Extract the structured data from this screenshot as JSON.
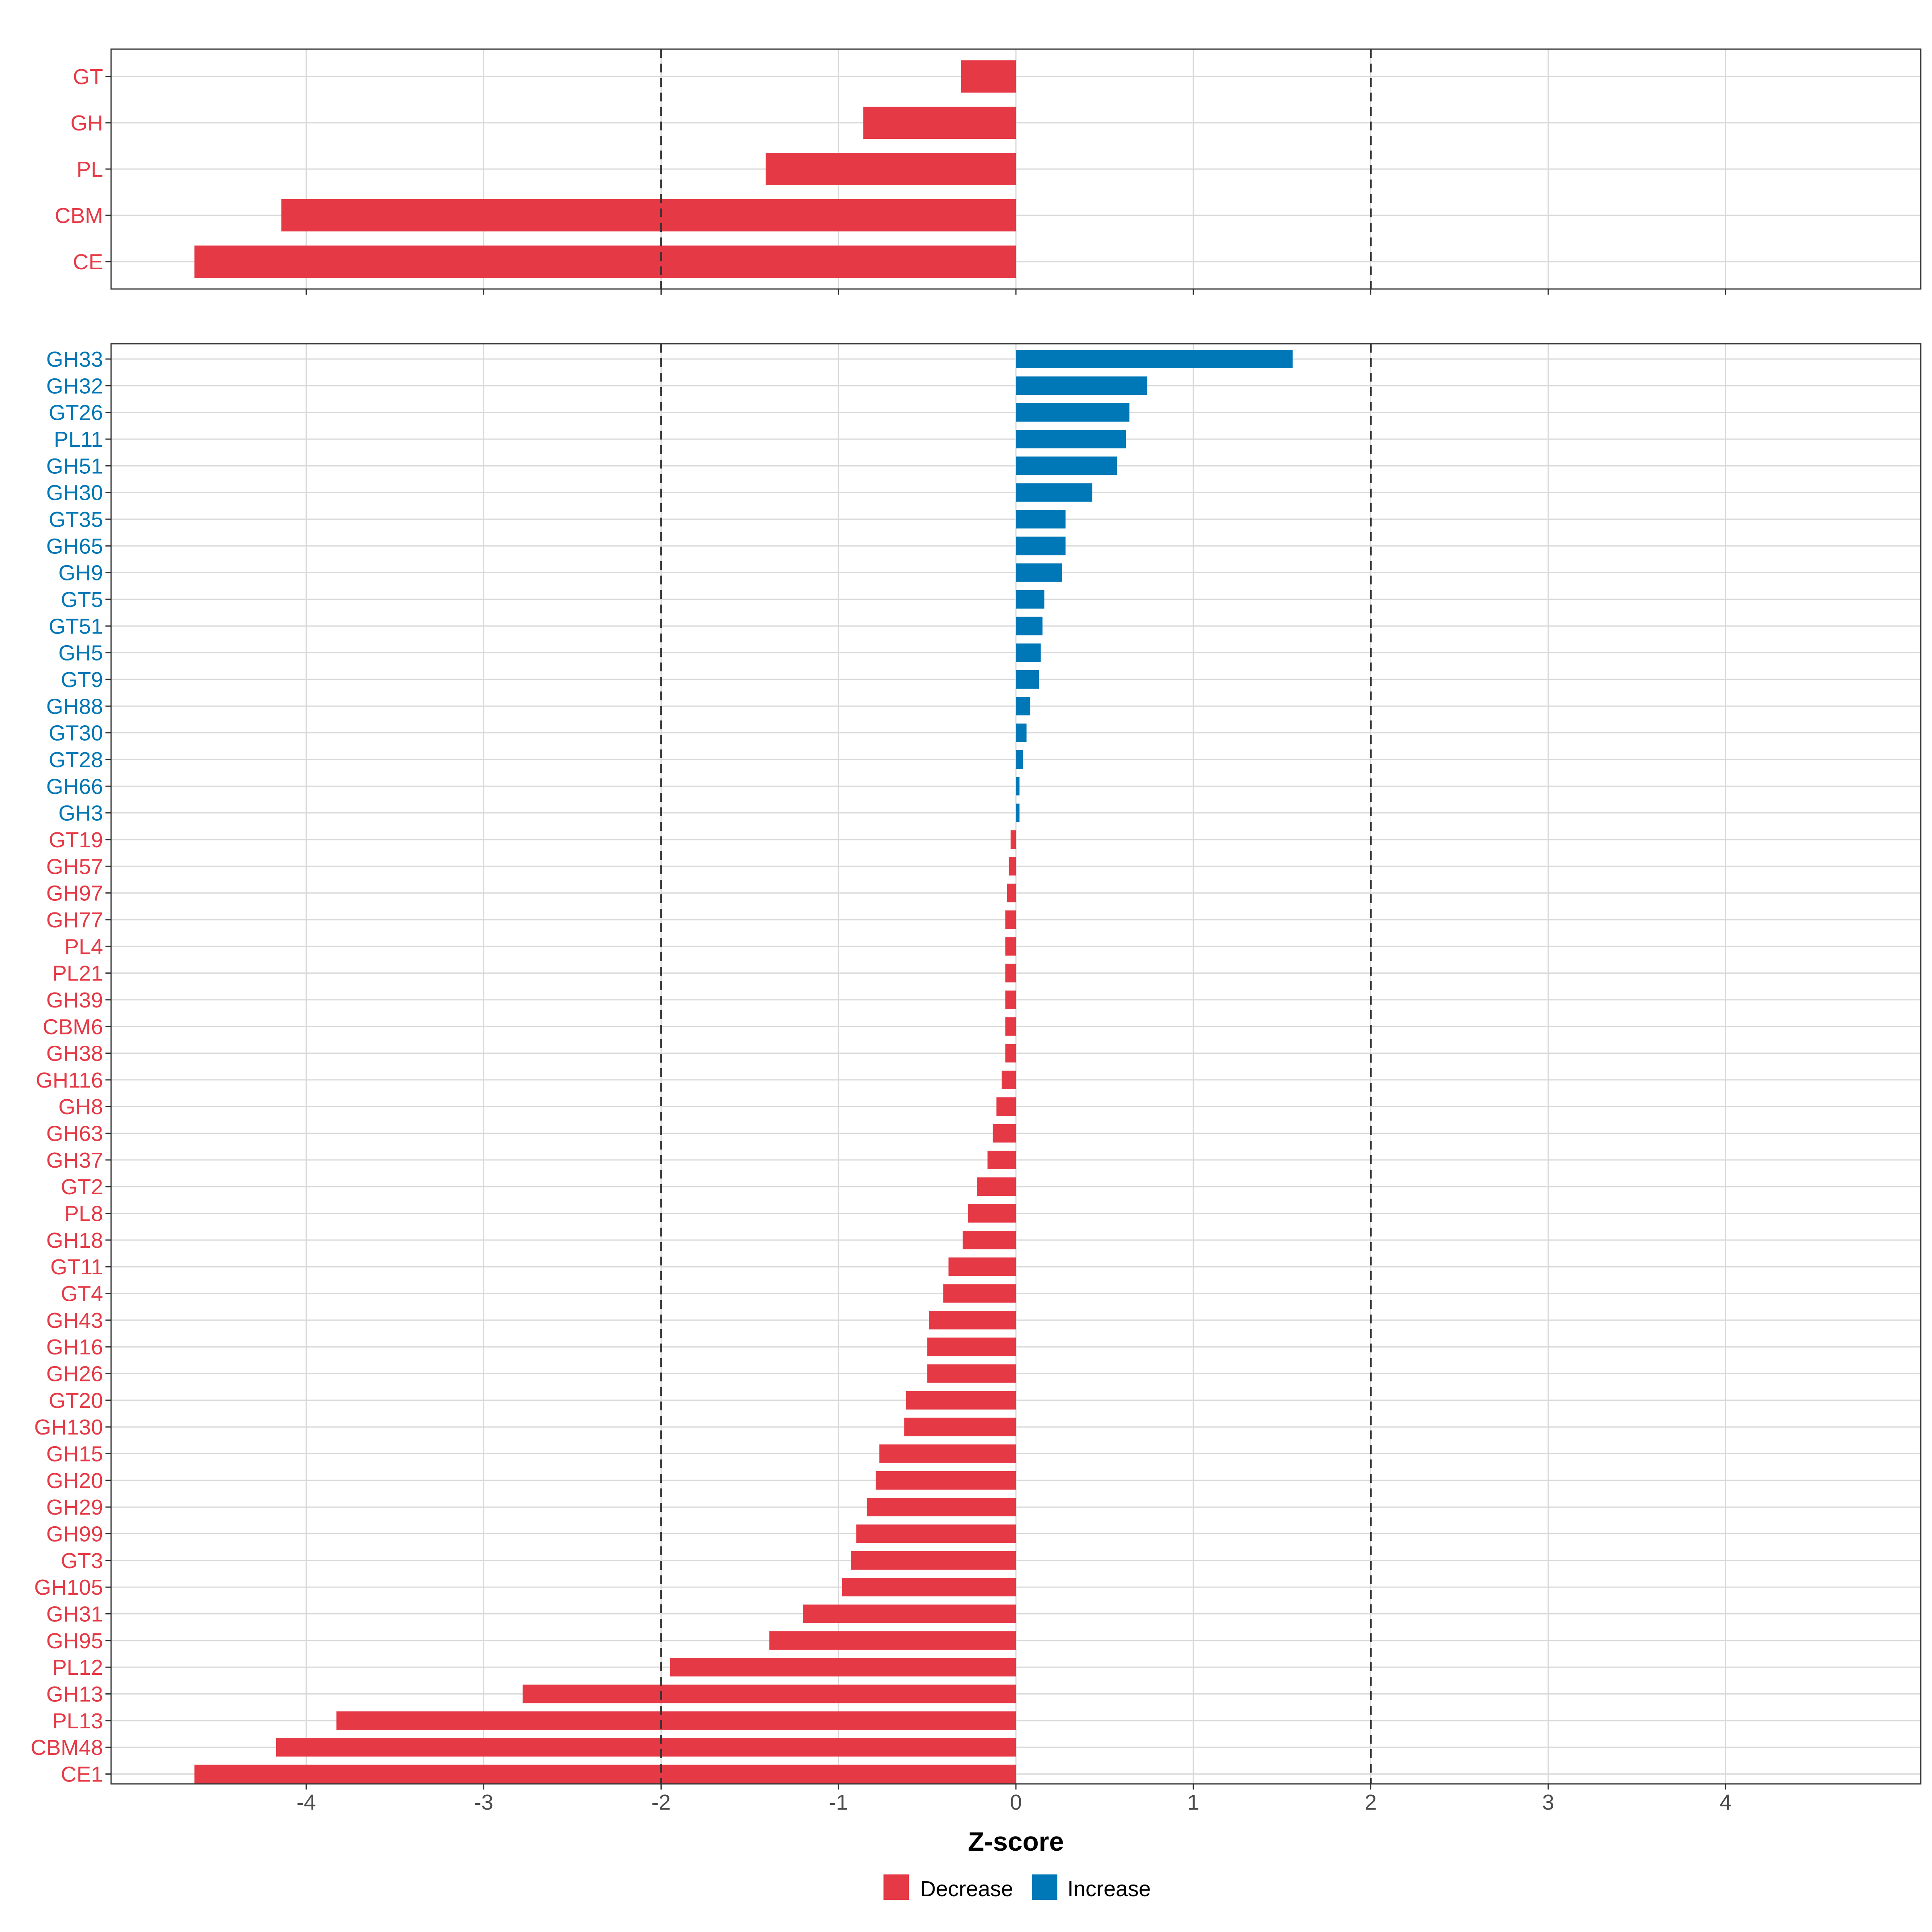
{
  "chart_data": {
    "type": "bar",
    "orientation": "horizontal",
    "xlabel": "Z-score",
    "xlim": [
      -5.1,
      5.1
    ],
    "xticks": [
      -4,
      -3,
      -2,
      -1,
      0,
      1,
      2,
      3,
      4
    ],
    "reference_lines": [
      -2,
      2
    ],
    "grid": true,
    "legend": {
      "position": "bottom",
      "items": [
        {
          "label": "Decrease",
          "color": "#E63946"
        },
        {
          "label": "Increase",
          "color": "#0077B6"
        }
      ]
    },
    "panels": [
      {
        "name": "class",
        "categories": [
          "GT",
          "GH",
          "PL",
          "CBM",
          "CE"
        ],
        "values": [
          -0.31,
          -0.86,
          -1.41,
          -4.14,
          -4.63
        ]
      },
      {
        "name": "family",
        "categories": [
          "GH33",
          "GH32",
          "GT26",
          "PL11",
          "GH51",
          "GH30",
          "GT35",
          "GH65",
          "GH9",
          "GT5",
          "GT51",
          "GH5",
          "GT9",
          "GH88",
          "GT30",
          "GT28",
          "GH66",
          "GH3",
          "GT19",
          "GH57",
          "GH97",
          "GH77",
          "PL4",
          "PL21",
          "GH39",
          "CBM6",
          "GH38",
          "GH116",
          "GH8",
          "GH63",
          "GH37",
          "GT2",
          "PL8",
          "GH18",
          "GT11",
          "GT4",
          "GH43",
          "GH16",
          "GH26",
          "GT20",
          "GH130",
          "GH15",
          "GH20",
          "GH29",
          "GH99",
          "GT3",
          "GH105",
          "GH31",
          "GH95",
          "PL12",
          "GH13",
          "PL13",
          "CBM48",
          "CE1"
        ],
        "values": [
          1.56,
          0.74,
          0.64,
          0.62,
          0.57,
          0.43,
          0.28,
          0.28,
          0.26,
          0.16,
          0.15,
          0.14,
          0.13,
          0.08,
          0.06,
          0.04,
          0.02,
          0.02,
          -0.03,
          -0.04,
          -0.05,
          -0.06,
          -0.06,
          -0.06,
          -0.06,
          -0.06,
          -0.06,
          -0.08,
          -0.11,
          -0.13,
          -0.16,
          -0.22,
          -0.27,
          -0.3,
          -0.38,
          -0.41,
          -0.49,
          -0.5,
          -0.5,
          -0.62,
          -0.63,
          -0.77,
          -0.79,
          -0.84,
          -0.9,
          -0.93,
          -0.98,
          -1.2,
          -1.39,
          -1.95,
          -2.78,
          -3.83,
          -4.17,
          -4.63
        ]
      }
    ]
  }
}
